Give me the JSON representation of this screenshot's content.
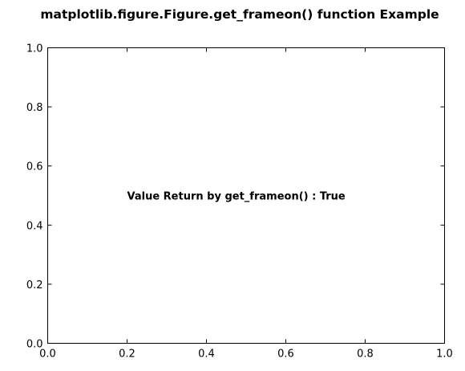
{
  "chart_data": {
    "type": "scatter",
    "title": "matplotlib.figure.Figure.get_frameon() function Example",
    "xlabel": "",
    "ylabel": "",
    "xlim": [
      0.0,
      1.0
    ],
    "ylim": [
      0.0,
      1.0
    ],
    "x_ticks": [
      0.0,
      0.2,
      0.4,
      0.6,
      0.8,
      1.0
    ],
    "y_ticks": [
      0.0,
      0.2,
      0.4,
      0.6,
      0.8,
      1.0
    ],
    "x_tick_labels": [
      "0.0",
      "0.2",
      "0.4",
      "0.6",
      "0.8",
      "1.0"
    ],
    "y_tick_labels": [
      "0.0",
      "0.2",
      "0.4",
      "0.6",
      "0.8",
      "1.0"
    ],
    "grid": false,
    "series": [],
    "annotations": [
      {
        "text": "Value Return by get_frameon() : True",
        "x": 0.2,
        "y": 0.5
      }
    ]
  }
}
